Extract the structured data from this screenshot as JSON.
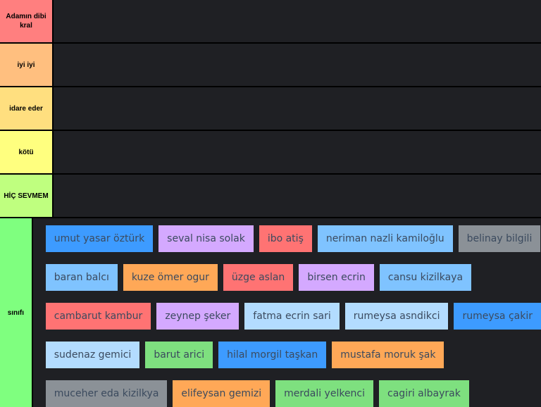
{
  "tiers": [
    {
      "label": "Adamın dibi kral",
      "color": "#ff7f7f"
    },
    {
      "label": "iyi iyi",
      "color": "#ffbf7f"
    },
    {
      "label": "idare eder",
      "color": "#ffdf7f"
    },
    {
      "label": "kötü",
      "color": "#ffff7f"
    },
    {
      "label": "HİÇ SEVMEM",
      "color": "#bfff7f"
    },
    {
      "label": "sınıfı",
      "color": "#7fff7f"
    }
  ],
  "item_rows": [
    [
      {
        "name": "umut yasar öztürk",
        "color": "#3d9bff"
      },
      {
        "name": "seval nisa solak",
        "color": "#d4a9ff"
      },
      {
        "name": "ibo atiş",
        "color": "#ff7373"
      },
      {
        "name": "neriman nazli kamiloğlu",
        "color": "#7fc3ff"
      },
      {
        "name": "belinay bilgili",
        "color": "#8b9197"
      }
    ],
    [
      {
        "name": "baran balcı",
        "color": "#7fc3ff"
      },
      {
        "name": "kuze ömer ogur",
        "color": "#ffa857"
      },
      {
        "name": "üzge aslan",
        "color": "#ff7373"
      },
      {
        "name": "birsen ecrin",
        "color": "#d4a9ff"
      },
      {
        "name": "cansu kizilkaya",
        "color": "#7fc3ff"
      }
    ],
    [
      {
        "name": "cambarut kambur",
        "color": "#ff7373"
      },
      {
        "name": "zeynep şeker",
        "color": "#d4a9ff"
      },
      {
        "name": "fatma ecrin sari",
        "color": "#b3dcff"
      },
      {
        "name": "rumeysa asndikci",
        "color": "#b3dcff"
      },
      {
        "name": "rumeysa çakir",
        "color": "#3d9bff"
      }
    ],
    [
      {
        "name": "sudenaz gemici",
        "color": "#b3dcff"
      },
      {
        "name": "barut arici",
        "color": "#7ee07f"
      },
      {
        "name": "hilal morgil taşkan",
        "color": "#3d9bff"
      },
      {
        "name": "mustafa moruk şak",
        "color": "#ffa857"
      }
    ],
    [
      {
        "name": "muceher eda kizilkya",
        "color": "#8b9197"
      },
      {
        "name": "elifeysan gemizi",
        "color": "#ffa857"
      },
      {
        "name": "merdali yelkenci",
        "color": "#7ee07f"
      },
      {
        "name": "cagiri albayrak",
        "color": "#7ee07f"
      }
    ]
  ]
}
